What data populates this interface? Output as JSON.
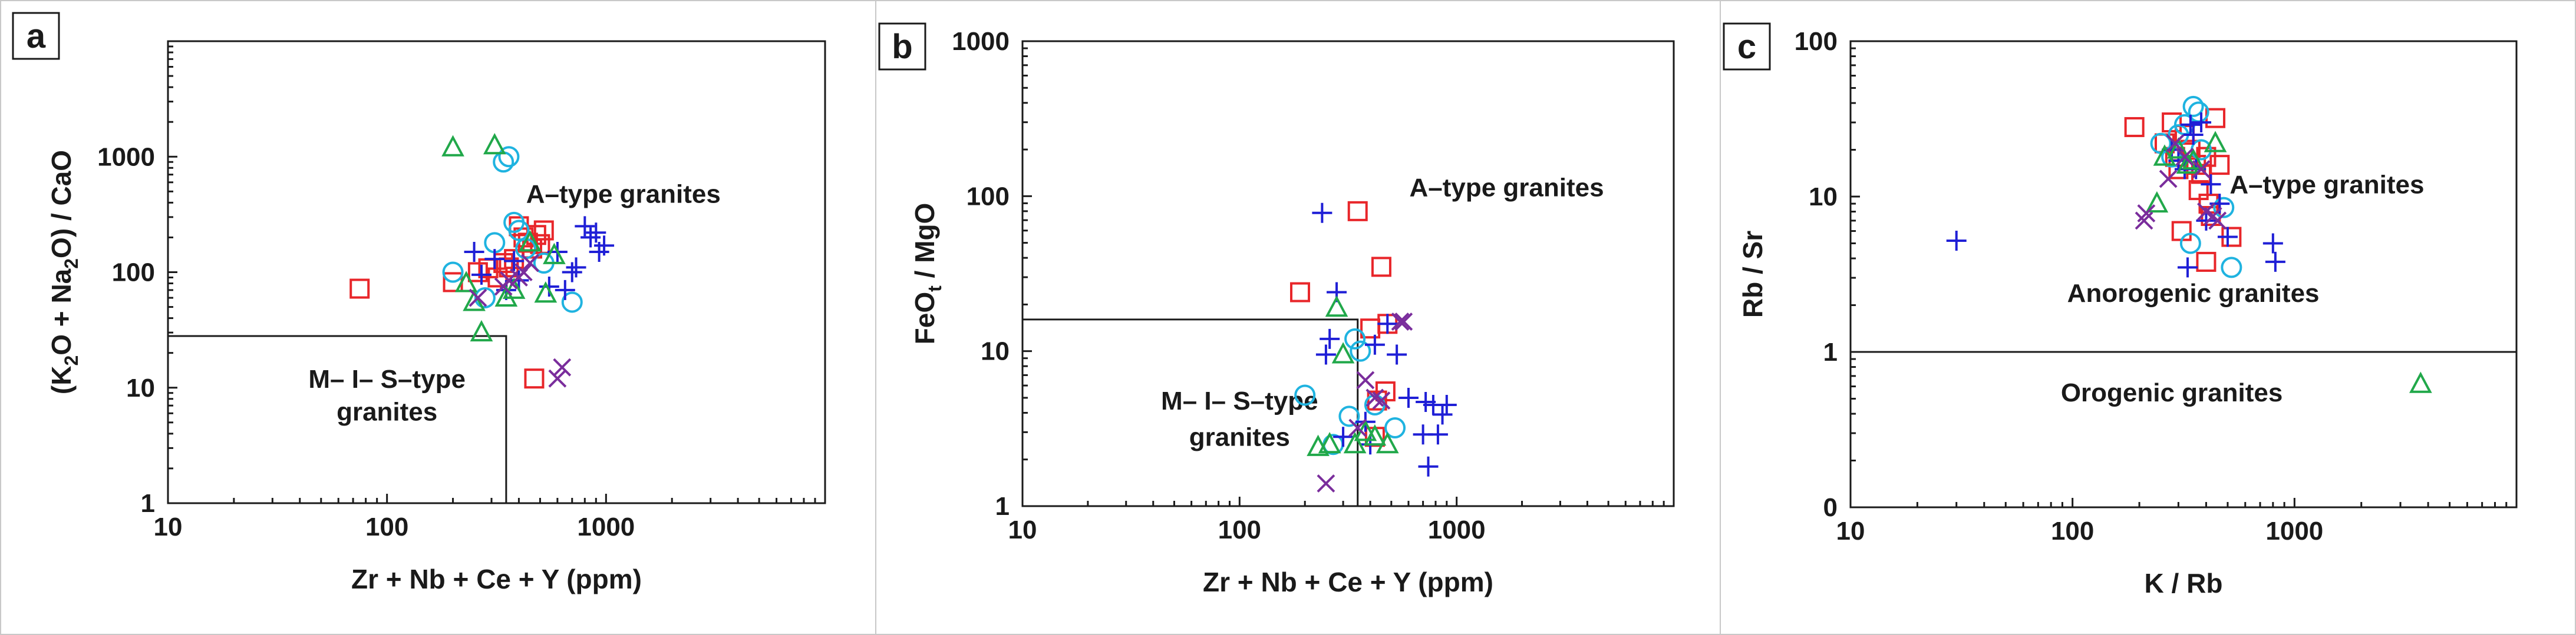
{
  "figure": {
    "border_color": "#c8c8c8"
  },
  "series_styles": {
    "red_square": {
      "marker": "square",
      "color": "#e8262a"
    },
    "cyan_circle": {
      "marker": "circle",
      "color": "#1fb3e0"
    },
    "blue_plus": {
      "marker": "plus",
      "color": "#1f1fd6"
    },
    "green_triangle": {
      "marker": "triangle",
      "color": "#21a84a"
    },
    "purple_x": {
      "marker": "x",
      "color": "#7a2d9c"
    }
  },
  "chart_data": [
    {
      "type": "scatter",
      "panel_letter": "a",
      "xscale": "log",
      "yscale": "log",
      "xlim": [
        10,
        10000
      ],
      "ylim": [
        1,
        10000
      ],
      "xticks": [
        10,
        100,
        1000
      ],
      "xtick_labels": [
        "10",
        "100",
        "1000"
      ],
      "yticks": [
        1,
        10,
        100,
        1000
      ],
      "ytick_labels": [
        "1",
        "10",
        "100",
        "1000"
      ],
      "xlabel": "Zr + Nb + Ce + Y (ppm)",
      "ylabel": {
        "pre": "(K",
        "sub1": "2",
        "mid": "O + Na",
        "sub2": "2",
        "post": "O) / CaO"
      },
      "boundary": [
        [
          10,
          28
        ],
        [
          350,
          28
        ],
        [
          350,
          1
        ]
      ],
      "annotations": [
        {
          "text": "A–type granites",
          "x": 1200,
          "y": 400
        },
        {
          "text": "M– I– S–type",
          "x": 100,
          "y": 10
        },
        {
          "text": "granites",
          "x": 100,
          "y": 5.2
        }
      ],
      "series": [
        {
          "name": "red squares",
          "style": "red_square",
          "points": [
            [
              75,
              72
            ],
            [
              200,
              82
            ],
            [
              260,
              100
            ],
            [
              290,
              108
            ],
            [
              320,
              90
            ],
            [
              340,
              120
            ],
            [
              360,
              110
            ],
            [
              380,
              130
            ],
            [
              400,
              250
            ],
            [
              420,
              200
            ],
            [
              440,
              180
            ],
            [
              460,
              160
            ],
            [
              480,
              210
            ],
            [
              500,
              175
            ],
            [
              520,
              230
            ],
            [
              470,
              12
            ]
          ]
        },
        {
          "name": "cyan circles",
          "style": "cyan_circle",
          "points": [
            [
              200,
              100
            ],
            [
              280,
              60
            ],
            [
              310,
              180
            ],
            [
              340,
              900
            ],
            [
              360,
              1000
            ],
            [
              380,
              270
            ],
            [
              400,
              230
            ],
            [
              430,
              160
            ],
            [
              520,
              120
            ],
            [
              700,
              55
            ]
          ]
        },
        {
          "name": "blue crosses",
          "style": "blue_plus",
          "points": [
            [
              250,
              150
            ],
            [
              270,
              95
            ],
            [
              310,
              130
            ],
            [
              350,
              70
            ],
            [
              380,
              125
            ],
            [
              400,
              85
            ],
            [
              550,
              75
            ],
            [
              600,
              150
            ],
            [
              650,
              70
            ],
            [
              700,
              100
            ],
            [
              730,
              110
            ],
            [
              800,
              250
            ],
            [
              850,
              200
            ],
            [
              900,
              220
            ],
            [
              930,
              150
            ],
            [
              980,
              170
            ]
          ]
        },
        {
          "name": "green triangles",
          "style": "green_triangle",
          "points": [
            [
              200,
              1200
            ],
            [
              230,
              80
            ],
            [
              250,
              55
            ],
            [
              270,
              30
            ],
            [
              310,
              1250
            ],
            [
              350,
              60
            ],
            [
              380,
              70
            ],
            [
              450,
              180
            ],
            [
              530,
              65
            ],
            [
              580,
              140
            ]
          ]
        },
        {
          "name": "purple crosses",
          "style": "purple_x",
          "points": [
            [
              260,
              60
            ],
            [
              340,
              75
            ],
            [
              360,
              85
            ],
            [
              400,
              90
            ],
            [
              420,
              100
            ],
            [
              450,
              120
            ],
            [
              600,
              12
            ],
            [
              630,
              15
            ]
          ]
        }
      ]
    },
    {
      "type": "scatter",
      "panel_letter": "b",
      "xscale": "log",
      "yscale": "log",
      "xlim": [
        10,
        10000
      ],
      "ylim": [
        1,
        1000
      ],
      "xticks": [
        10,
        100,
        1000
      ],
      "xtick_labels": [
        "10",
        "100",
        "1000"
      ],
      "yticks": [
        1,
        10,
        100,
        1000
      ],
      "ytick_labels": [
        "1",
        "10",
        "100",
        "1000"
      ],
      "xlabel": "Zr + Nb + Ce + Y (ppm)",
      "ylabel": {
        "pre": "FeO",
        "sub1": "t",
        "mid": " / MgO",
        "sub2": "",
        "post": ""
      },
      "boundary": [
        [
          10,
          16
        ],
        [
          350,
          16
        ],
        [
          350,
          1
        ]
      ],
      "annotations": [
        {
          "text": "A–type granites",
          "x": 1700,
          "y": 100
        },
        {
          "text": "M– I– S–type",
          "x": 100,
          "y": 4.2
        },
        {
          "text": "granites",
          "x": 100,
          "y": 2.45
        }
      ],
      "series": [
        {
          "name": "red squares",
          "style": "red_square",
          "points": [
            [
              190,
              24
            ],
            [
              350,
              80
            ],
            [
              400,
              14
            ],
            [
              450,
              35
            ],
            [
              480,
              15
            ],
            [
              470,
              5.5
            ],
            [
              430,
              4.8
            ],
            [
              420,
              2.8
            ]
          ]
        },
        {
          "name": "cyan circles",
          "style": "cyan_circle",
          "points": [
            [
              200,
              5.2
            ],
            [
              270,
              2.5
            ],
            [
              320,
              3.8
            ],
            [
              340,
              12
            ],
            [
              360,
              10
            ],
            [
              420,
              4.5
            ],
            [
              520,
              3.2
            ]
          ]
        },
        {
          "name": "blue crosses",
          "style": "blue_plus",
          "points": [
            [
              240,
              78
            ],
            [
              250,
              9.5
            ],
            [
              260,
              12
            ],
            [
              280,
              24
            ],
            [
              300,
              2.8
            ],
            [
              380,
              3.5
            ],
            [
              400,
              2.5
            ],
            [
              420,
              11
            ],
            [
              480,
              15
            ],
            [
              530,
              9.5
            ],
            [
              600,
              5
            ],
            [
              700,
              2.9
            ],
            [
              720,
              4.7
            ],
            [
              740,
              1.8
            ],
            [
              780,
              4.5
            ],
            [
              820,
              2.9
            ],
            [
              860,
              3.9
            ],
            [
              900,
              4.5
            ]
          ]
        },
        {
          "name": "green triangles",
          "style": "green_triangle",
          "points": [
            [
              230,
              2.4
            ],
            [
              260,
              2.5
            ],
            [
              280,
              19
            ],
            [
              300,
              9.5
            ],
            [
              340,
              2.5
            ],
            [
              380,
              3
            ],
            [
              420,
              2.8
            ],
            [
              480,
              2.5
            ]
          ]
        },
        {
          "name": "purple crosses",
          "style": "purple_x",
          "points": [
            [
              250,
              1.4
            ],
            [
              350,
              3.2
            ],
            [
              380,
              6.5
            ],
            [
              420,
              5
            ],
            [
              450,
              4.8
            ],
            [
              550,
              15.5
            ],
            [
              570,
              15.5
            ]
          ]
        }
      ]
    },
    {
      "type": "scatter",
      "panel_letter": "c",
      "xscale": "log",
      "yscale": "log",
      "xlim": [
        10,
        10000
      ],
      "ylim": [
        0.1,
        100
      ],
      "xticks": [
        10,
        100,
        1000
      ],
      "xtick_labels": [
        "10",
        "100",
        "1000"
      ],
      "yticks": [
        0.1,
        1,
        10,
        100
      ],
      "ytick_labels": [
        "0",
        "1",
        "10",
        "100"
      ],
      "xlabel": "K / Rb",
      "ylabel": {
        "pre": "Rb / Sr",
        "sub1": "",
        "mid": "",
        "sub2": "",
        "post": ""
      },
      "boundary": [
        [
          10,
          1
        ],
        [
          10000,
          1
        ]
      ],
      "annotations": [
        {
          "text": "A–type granites",
          "x": 1400,
          "y": 10.5
        },
        {
          "text": "Anorogenic granites",
          "x": 350,
          "y": 2.1
        },
        {
          "text": "Orogenic granites",
          "x": 280,
          "y": 0.48
        }
      ],
      "series": [
        {
          "name": "red squares",
          "style": "red_square",
          "points": [
            [
              190,
              28
            ],
            [
              260,
              22
            ],
            [
              280,
              30
            ],
            [
              290,
              18
            ],
            [
              300,
              15
            ],
            [
              310,
              6
            ],
            [
              320,
              25
            ],
            [
              340,
              20
            ],
            [
              360,
              16
            ],
            [
              370,
              11
            ],
            [
              380,
              14
            ],
            [
              400,
              18
            ],
            [
              400,
              3.8
            ],
            [
              410,
              9
            ],
            [
              420,
              7.5
            ],
            [
              440,
              32
            ],
            [
              460,
              16
            ],
            [
              520,
              5.5
            ]
          ]
        },
        {
          "name": "cyan circles",
          "style": "cyan_circle",
          "points": [
            [
              250,
              22
            ],
            [
              280,
              18
            ],
            [
              300,
              25
            ],
            [
              320,
              29
            ],
            [
              350,
              38
            ],
            [
              370,
              35
            ],
            [
              380,
              20
            ],
            [
              340,
              5
            ],
            [
              480,
              8.5
            ],
            [
              520,
              3.5
            ]
          ]
        },
        {
          "name": "blue crosses",
          "style": "blue_plus",
          "points": [
            [
              30,
              5.2
            ],
            [
              280,
              20
            ],
            [
              300,
              17
            ],
            [
              320,
              15
            ],
            [
              330,
              3.5
            ],
            [
              340,
              29
            ],
            [
              350,
              25
            ],
            [
              360,
              15
            ],
            [
              380,
              30
            ],
            [
              400,
              7
            ],
            [
              420,
              12
            ],
            [
              460,
              9
            ],
            [
              500,
              5.5
            ],
            [
              800,
              5
            ],
            [
              820,
              3.8
            ]
          ]
        },
        {
          "name": "green triangles",
          "style": "green_triangle",
          "points": [
            [
              240,
              9
            ],
            [
              260,
              18
            ],
            [
              300,
              20
            ],
            [
              330,
              16
            ],
            [
              350,
              17
            ],
            [
              440,
              22
            ],
            [
              3700,
              0.62
            ]
          ]
        },
        {
          "name": "purple crosses",
          "style": "purple_x",
          "points": [
            [
              210,
              7
            ],
            [
              215,
              7.8
            ],
            [
              270,
              13
            ],
            [
              290,
              22
            ],
            [
              320,
              18
            ],
            [
              380,
              15
            ],
            [
              400,
              8
            ],
            [
              430,
              7.5
            ],
            [
              450,
              7
            ]
          ]
        }
      ]
    }
  ]
}
